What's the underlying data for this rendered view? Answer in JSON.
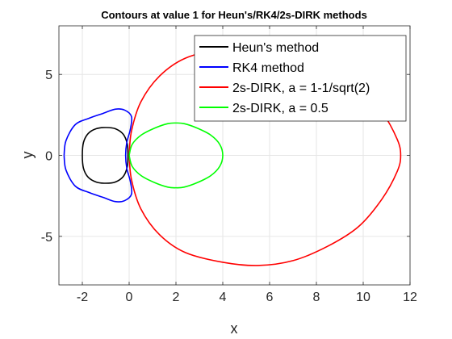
{
  "chart_data": {
    "type": "line",
    "title": "Contours at value 1 for Heun's/RK4/2s-DIRK methods",
    "xlabel": "x",
    "ylabel": "y",
    "xlim": [
      -3,
      12
    ],
    "ylim": [
      -8,
      8
    ],
    "xticks": [
      -2,
      0,
      2,
      4,
      6,
      8,
      10,
      12
    ],
    "yticks": [
      -5,
      0,
      5
    ],
    "xtick_labels": [
      "-2",
      "0",
      "2",
      "4",
      "6",
      "8",
      "10",
      "12"
    ],
    "ytick_labels": [
      "-5",
      "0",
      "5"
    ],
    "grid": true,
    "legend_position": "top-right",
    "series": [
      {
        "name": "Heun's method",
        "color": "#000000",
        "points": [
          [
            -0.05,
            0
          ],
          [
            -0.08,
            0.7
          ],
          [
            -0.25,
            1.3
          ],
          [
            -0.6,
            1.65
          ],
          [
            -1.0,
            1.72
          ],
          [
            -1.4,
            1.65
          ],
          [
            -1.75,
            1.35
          ],
          [
            -1.95,
            0.8
          ],
          [
            -2.0,
            0
          ],
          [
            -1.95,
            -0.8
          ],
          [
            -1.75,
            -1.35
          ],
          [
            -1.4,
            -1.65
          ],
          [
            -1.0,
            -1.72
          ],
          [
            -0.6,
            -1.65
          ],
          [
            -0.25,
            -1.3
          ],
          [
            -0.08,
            -0.7
          ],
          [
            -0.05,
            0
          ]
        ]
      },
      {
        "name": "RK4 method",
        "color": "#0000ff",
        "points": [
          [
            -2.78,
            0
          ],
          [
            -2.7,
            0.9
          ],
          [
            -2.3,
            1.9
          ],
          [
            -1.7,
            2.3
          ],
          [
            -1.1,
            2.6
          ],
          [
            -0.6,
            2.85
          ],
          [
            -0.2,
            2.8
          ],
          [
            0.1,
            2.4
          ],
          [
            0.05,
            1.6
          ],
          [
            -0.1,
            0.8
          ],
          [
            -0.15,
            0
          ],
          [
            -0.1,
            -0.8
          ],
          [
            0.05,
            -1.6
          ],
          [
            0.1,
            -2.4
          ],
          [
            -0.2,
            -2.8
          ],
          [
            -0.6,
            -2.85
          ],
          [
            -1.1,
            -2.6
          ],
          [
            -1.7,
            -2.3
          ],
          [
            -2.3,
            -1.9
          ],
          [
            -2.7,
            -0.9
          ],
          [
            -2.78,
            0
          ]
        ]
      },
      {
        "name": "2s-DIRK, a = 1-1/sqrt(2)",
        "color": "#ff0000",
        "points": [
          [
            0.0,
            0.0
          ],
          [
            0.1,
            1.5
          ],
          [
            0.5,
            3.3
          ],
          [
            1.3,
            4.9
          ],
          [
            2.4,
            6.0
          ],
          [
            4.0,
            6.6
          ],
          [
            5.5,
            6.8
          ],
          [
            7.0,
            6.5
          ],
          [
            8.5,
            5.6
          ],
          [
            9.8,
            4.4
          ],
          [
            10.8,
            2.7
          ],
          [
            11.45,
            1.0
          ],
          [
            11.6,
            0
          ],
          [
            11.45,
            -1.0
          ],
          [
            10.8,
            -2.7
          ],
          [
            9.8,
            -4.4
          ],
          [
            8.5,
            -5.6
          ],
          [
            7.0,
            -6.5
          ],
          [
            5.5,
            -6.8
          ],
          [
            4.0,
            -6.6
          ],
          [
            2.4,
            -6.0
          ],
          [
            1.3,
            -4.9
          ],
          [
            0.5,
            -3.3
          ],
          [
            0.1,
            -1.5
          ],
          [
            0.0,
            0.0
          ]
        ]
      },
      {
        "name": "2s-DIRK, a = 0.5",
        "color": "#00ff00",
        "points": [
          [
            0.0,
            0
          ],
          [
            0.13,
            0.68
          ],
          [
            0.52,
            1.26
          ],
          [
            1.1,
            1.69
          ],
          [
            1.65,
            1.96
          ],
          [
            2.0,
            2.0
          ],
          [
            2.35,
            1.96
          ],
          [
            2.9,
            1.69
          ],
          [
            3.48,
            1.26
          ],
          [
            3.87,
            0.68
          ],
          [
            4.0,
            0
          ],
          [
            3.87,
            -0.68
          ],
          [
            3.48,
            -1.26
          ],
          [
            2.9,
            -1.69
          ],
          [
            2.35,
            -1.96
          ],
          [
            2.0,
            -2.0
          ],
          [
            1.65,
            -1.96
          ],
          [
            1.1,
            -1.69
          ],
          [
            0.52,
            -1.26
          ],
          [
            0.13,
            -0.68
          ],
          [
            0.0,
            0
          ]
        ]
      }
    ]
  }
}
